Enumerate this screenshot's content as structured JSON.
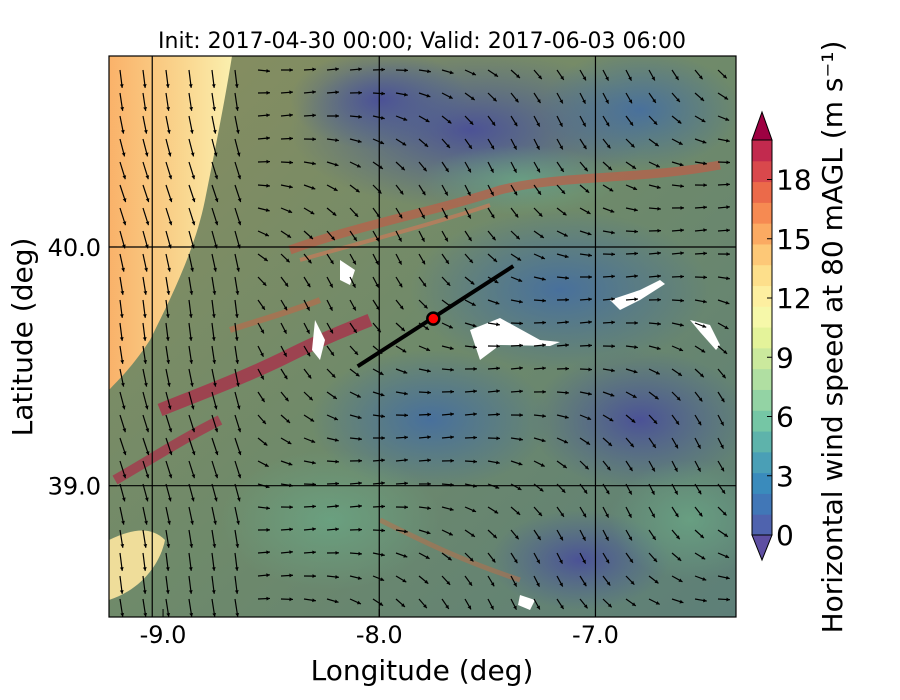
{
  "chart_data": {
    "type": "heatmap",
    "title": "Init: 2017-04-30 00:00; Valid: 2017-06-03 06:00",
    "xlabel": "Longitude (deg)",
    "ylabel": "Latitude (deg)",
    "xlim": [
      -9.25,
      -6.35
    ],
    "ylim": [
      38.45,
      40.8
    ],
    "x_ticks": [
      -9.0,
      -8.0,
      -7.0
    ],
    "x_tick_labels": [
      "-9.0",
      "-8.0",
      "-7.0"
    ],
    "y_ticks": [
      39.0,
      40.0
    ],
    "y_tick_labels": [
      "39.0",
      "40.0"
    ],
    "grid_lon": [
      -9.05,
      -8.0,
      -7.0
    ],
    "grid_lat": [
      39.0,
      40.0
    ],
    "colorbar": {
      "label": "Horizontal wind speed at 80 mAGL (m s⁻¹)",
      "range": [
        0,
        20
      ],
      "ticks": [
        0,
        3,
        6,
        9,
        12,
        15,
        18
      ],
      "tick_labels": [
        "0",
        "3",
        "6",
        "9",
        "12",
        "15",
        "18"
      ],
      "extend": "both",
      "colors": [
        "#5e4fa2",
        "#4f63ae",
        "#4177b7",
        "#3a8bbc",
        "#4a9fb6",
        "#5eb3ab",
        "#75c6a5",
        "#93d3a4",
        "#b0dfa2",
        "#cbe99d",
        "#e4f39a",
        "#f6f8a9",
        "#fdefa0",
        "#fddf8b",
        "#fdc877",
        "#fbaa62",
        "#f68a52",
        "#eb6a4a",
        "#d9484c",
        "#c22a4e",
        "#9e0142"
      ]
    },
    "site": {
      "lon": -7.75,
      "lat": 39.7,
      "color": "#ff0000"
    },
    "transect": {
      "start": [
        -8.1,
        39.5
      ],
      "end": [
        -7.38,
        39.92
      ]
    }
  }
}
